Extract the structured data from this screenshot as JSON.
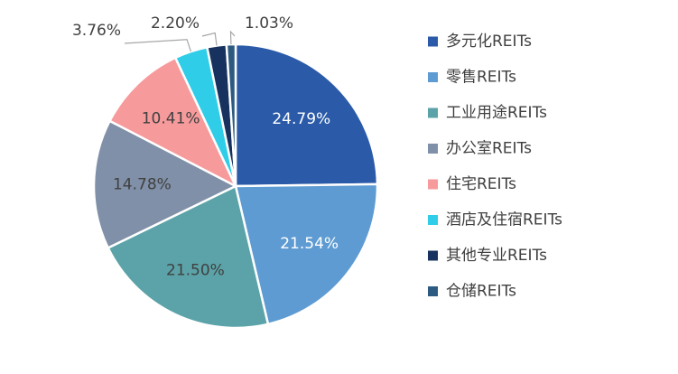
{
  "chart_data": {
    "type": "pie",
    "title": "",
    "legend_position": "right",
    "slices": [
      {
        "label": "多元化REITs",
        "value": 24.79,
        "display": "24.79%",
        "color": "#2b5ba8",
        "label_color": "#ffffff"
      },
      {
        "label": "零售REITs",
        "value": 21.54,
        "display": "21.54%",
        "color": "#5e9bd2",
        "label_color": "#ffffff"
      },
      {
        "label": "工业用途REITs",
        "value": 21.5,
        "display": "21.50%",
        "color": "#5ba3a8",
        "label_color": "#404040"
      },
      {
        "label": "办公室REITs",
        "value": 14.78,
        "display": "14.78%",
        "color": "#8090a8",
        "label_color": "#404040"
      },
      {
        "label": "住宅REITs",
        "value": 10.41,
        "display": "10.41%",
        "color": "#f79a9c",
        "label_color": "#404040"
      },
      {
        "label": "酒店及住宿REITs",
        "value": 3.76,
        "display": "3.76%",
        "color": "#2fcde8",
        "label_color": "#404040"
      },
      {
        "label": "其他专业REITs",
        "value": 2.2,
        "display": "2.20%",
        "color": "#17325e",
        "label_color": "#404040"
      },
      {
        "label": "仓储REITs",
        "value": 1.03,
        "display": "1.03%",
        "color": "#2c5a80",
        "label_color": "#404040"
      }
    ]
  }
}
